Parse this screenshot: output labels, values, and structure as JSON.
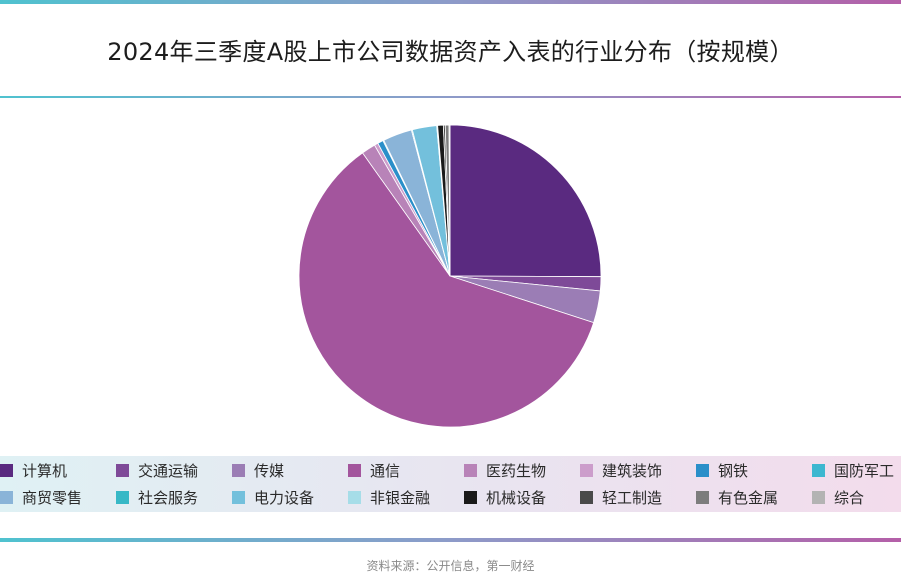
{
  "chart_data": {
    "type": "pie",
    "title": "2024年三季度A股上市公司数据资产入表的行业分布（按规模）",
    "source": "资料来源：公开信息，第一财经",
    "slices": [
      {
        "label": "计算机",
        "value": 25.0,
        "color": "#5a2a80"
      },
      {
        "label": "交通运输",
        "value": 1.5,
        "color": "#7e4a98"
      },
      {
        "label": "传媒",
        "value": 3.4,
        "color": "#9b7db5"
      },
      {
        "label": "通信",
        "value": 60.0,
        "color": "#a3559d"
      },
      {
        "label": "医药生物",
        "value": 1.5,
        "color": "#b883b8"
      },
      {
        "label": "建筑装饰",
        "value": 0.4,
        "color": "#cc9dcb"
      },
      {
        "label": "钢铁",
        "value": 0.6,
        "color": "#2a8fc9"
      },
      {
        "label": "国防军工",
        "value": 0.1,
        "color": "#3cb7d0"
      },
      {
        "label": "商贸零售",
        "value": 3.1,
        "color": "#8ab4d8"
      },
      {
        "label": "社会服务",
        "value": 0.1,
        "color": "#37b8c6"
      },
      {
        "label": "电力设备",
        "value": 2.6,
        "color": "#73c0dc"
      },
      {
        "label": "非银金融",
        "value": 0.1,
        "color": "#a6dde8"
      },
      {
        "label": "机械设备",
        "value": 0.6,
        "color": "#1a1a1a"
      },
      {
        "label": "轻工制造",
        "value": 0.2,
        "color": "#4a4a4a"
      },
      {
        "label": "有色金属",
        "value": 0.4,
        "color": "#7d7d7d"
      },
      {
        "label": "综合",
        "value": 0.1,
        "color": "#b3b3b3"
      }
    ]
  }
}
